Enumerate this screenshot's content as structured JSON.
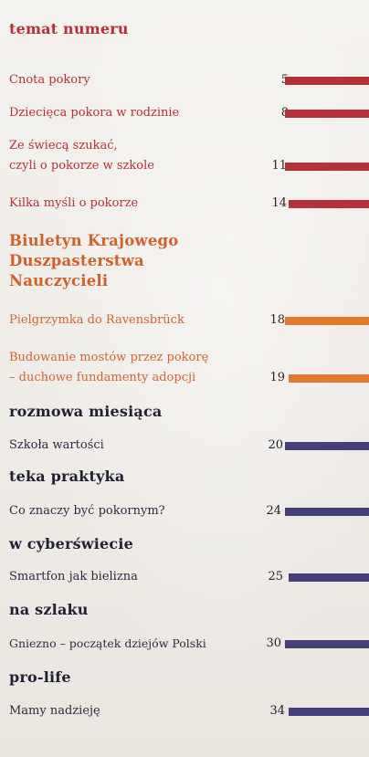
{
  "sections": [
    {
      "title": "temat numeru",
      "entries": [
        {
          "title": "Cnota pokory",
          "page": "5"
        },
        {
          "title": "Dziecięca pokora w rodzinie",
          "page": "8"
        },
        {
          "title_line1": "Ze świecą szukać,",
          "title_line2": "czyli o pokorze w szkole",
          "page": "11"
        },
        {
          "title": "Kilka myśli o pokorze",
          "page": "14"
        }
      ]
    },
    {
      "title_line1": "Biuletyn Krajowego",
      "title_line2": "Duszpasterstwa",
      "title_line3": "Nauczycieli",
      "entries": [
        {
          "title": "Pielgrzymka do Ravensbrück",
          "page": "18"
        },
        {
          "title_line1": "Budowanie mostów przez pokorę",
          "title_line2": "– duchowe fundamenty adopcji",
          "page": "19"
        }
      ]
    },
    {
      "title": "rozmowa miesiąca",
      "entries": [
        {
          "title": "Szkoła wartości",
          "page": "20"
        }
      ]
    },
    {
      "title": "teka praktyka",
      "entries": [
        {
          "title": "Co znaczy być pokornym?",
          "page": "24"
        }
      ]
    },
    {
      "title": "w cyberświecie",
      "entries": [
        {
          "title": "Smartfon jak bielizna",
          "page": "25"
        }
      ]
    },
    {
      "title": "na szlaku",
      "entries": [
        {
          "title": "Gniezno – początek dziejów Polski",
          "page": "30"
        }
      ]
    },
    {
      "title": "pro-life",
      "entries": [
        {
          "title": "Mamy nadzieję",
          "page": "34"
        }
      ]
    }
  ],
  "colors": {
    "red": "#b5313a",
    "orange": "#e27a32",
    "navy": "#443f78"
  }
}
